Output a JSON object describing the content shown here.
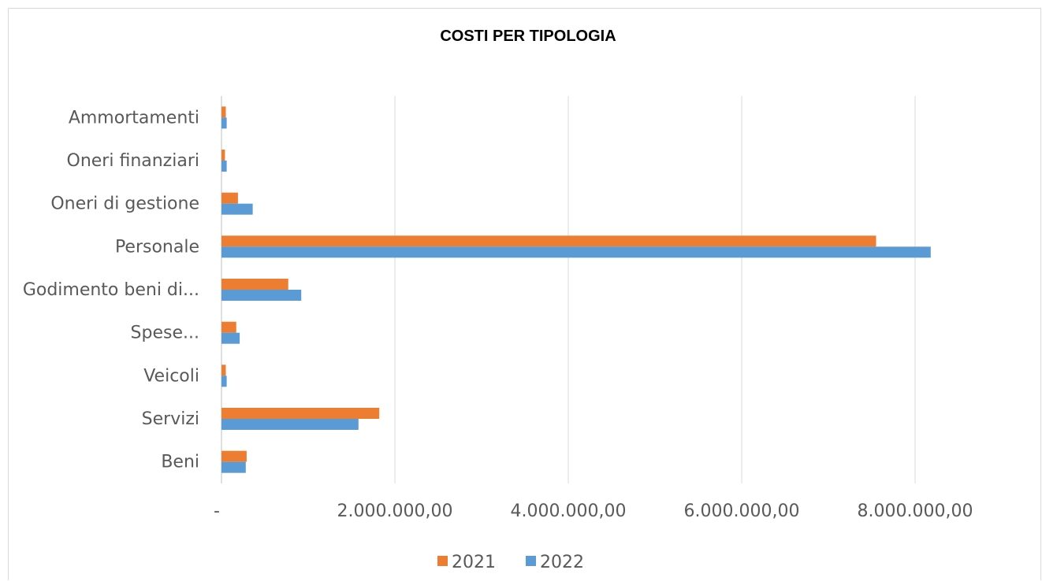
{
  "chart_data": {
    "type": "bar",
    "orientation": "horizontal",
    "title": "COSTI PER TIPOLOGIA",
    "categories": [
      "Ammortamenti",
      "Oneri finanziari",
      "Oneri di gestione",
      "Personale",
      "Godimento beni di...",
      "Spese...",
      "Veicoli",
      "Servizi",
      "Beni"
    ],
    "series": [
      {
        "name": "2021",
        "color": "#ED7D31",
        "values": [
          50000,
          40000,
          190000,
          7550000,
          770000,
          170000,
          50000,
          1820000,
          290000
        ]
      },
      {
        "name": "2022",
        "color": "#5B9BD5",
        "values": [
          60000,
          60000,
          360000,
          8180000,
          920000,
          210000,
          60000,
          1580000,
          280000
        ]
      }
    ],
    "xlim": [
      0,
      8000000
    ],
    "xticks": [
      "-",
      "2.000.000,00",
      "4.000.000,00",
      "6.000.000,00",
      "8.000.000,00"
    ],
    "grid": true,
    "legend_position": "bottom"
  }
}
